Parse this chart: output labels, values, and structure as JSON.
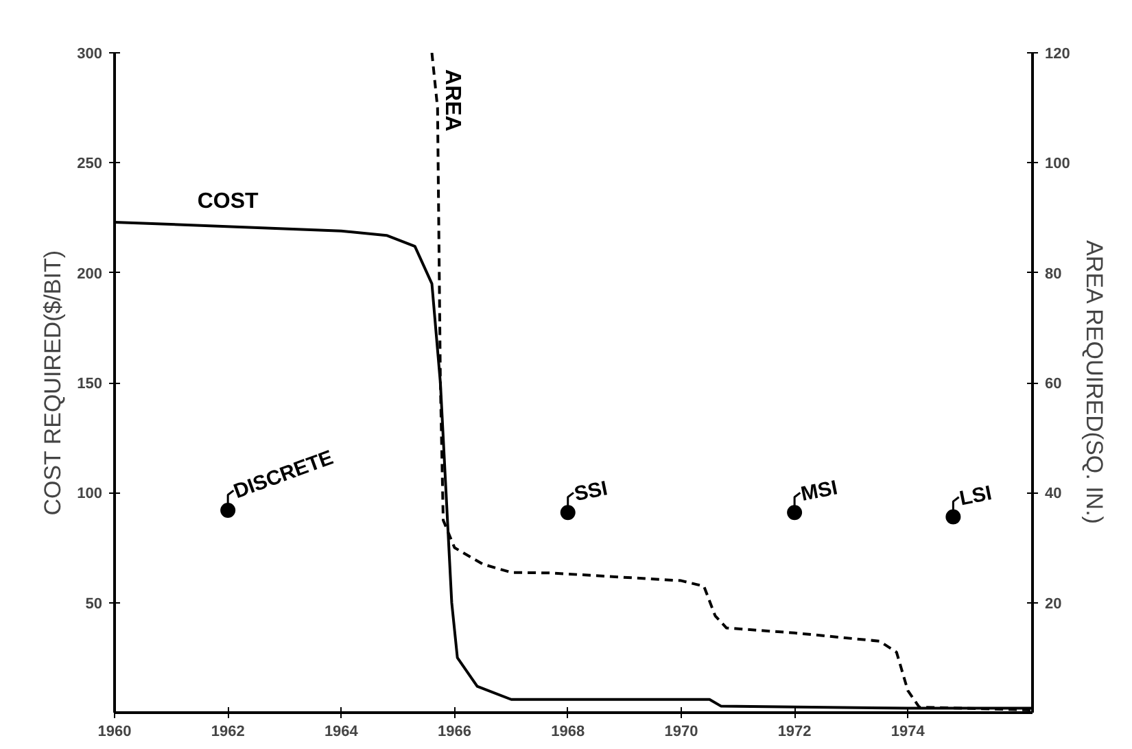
{
  "chart_data": {
    "type": "line",
    "xlabel": null,
    "ylabel": "COST REQUIRED($/BIT)",
    "y2label": "AREA REQUIRED(SQ. IN.)",
    "xlim": [
      1960,
      1976.2
    ],
    "xticks": [
      1960,
      1962,
      1964,
      1966,
      1968,
      1970,
      1972,
      1974
    ],
    "ylim": [
      0,
      300
    ],
    "yticks": [
      50,
      100,
      150,
      200,
      250,
      300
    ],
    "y2lim": [
      0,
      120
    ],
    "y2ticks": [
      20,
      40,
      60,
      80,
      100,
      120
    ],
    "grid": false,
    "series": [
      {
        "name": "COST",
        "color": "#000000",
        "line_style": "solid",
        "x": [
          1960,
          1964,
          1964.8,
          1965.3,
          1965.6,
          1965.75,
          1965.85,
          1965.95,
          1966.05,
          1966.4,
          1967,
          1970.5,
          1970.7,
          1974,
          1976.2
        ],
        "values": [
          223,
          219,
          217,
          212,
          195,
          150,
          100,
          50,
          25,
          12,
          6,
          6,
          3,
          2,
          2
        ]
      },
      {
        "name": "AREA",
        "color": "#000000",
        "line_style": "dashed",
        "axis": "y2",
        "x": [
          1965.6,
          1965.7,
          1965.75,
          1965.8,
          1966,
          1966.5,
          1967,
          1967.7,
          1970,
          1970.4,
          1970.6,
          1970.8,
          1972,
          1973.5,
          1973.8,
          1974,
          1974.2,
          1976.2
        ],
        "values": [
          120,
          110,
          60,
          35,
          30,
          27,
          25.5,
          25.4,
          24,
          23,
          17.6,
          15.4,
          14.5,
          13,
          11,
          4,
          1,
          0.5
        ]
      },
      {
        "type": "scatter",
        "color": "#000000",
        "marker": "circle",
        "x": [
          1962,
          1968,
          1972,
          1974.8
        ],
        "values": [
          92,
          91,
          91,
          89
        ]
      }
    ],
    "annotations": [
      {
        "text": "DISCRETE",
        "x": 1962,
        "y": 92
      },
      {
        "text": "SSI",
        "x": 1968,
        "y": 91
      },
      {
        "text": "MSI",
        "x": 1972,
        "y": 91
      },
      {
        "text": "LSI",
        "x": 1974.8,
        "y": 89
      }
    ]
  }
}
